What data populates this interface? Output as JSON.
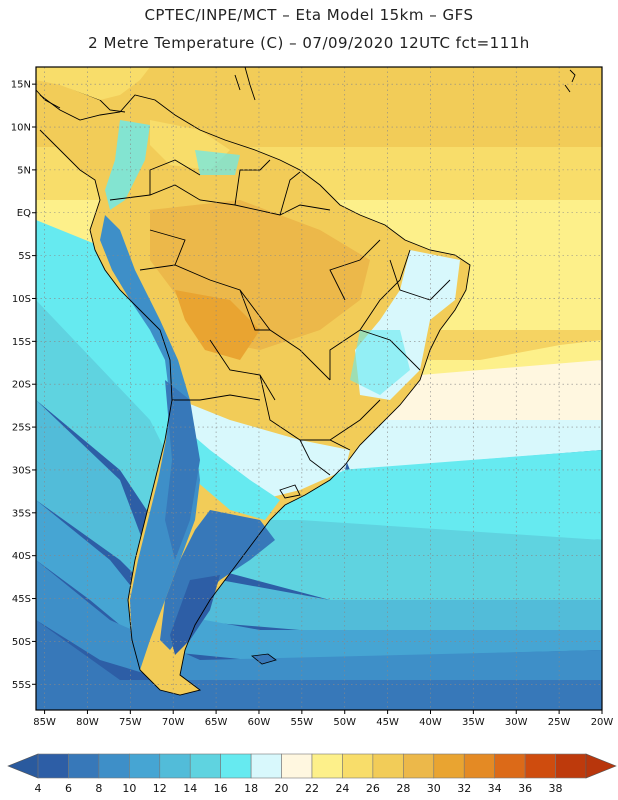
{
  "header": {
    "line1": "CPTEC/INPE/MCT –  Eta Model 15km – GFS",
    "line2": "2 Metre Temperature (C) – 07/09/2020 12UTC fct=111h"
  },
  "map": {
    "lat_labels": [
      "15N",
      "10N",
      "5N",
      "EQ",
      "5S",
      "10S",
      "15S",
      "20S",
      "25S",
      "30S",
      "35S",
      "40S",
      "45S",
      "50S",
      "55S"
    ],
    "lon_labels": [
      "85W",
      "80W",
      "75W",
      "70W",
      "65W",
      "60W",
      "55W",
      "50W",
      "45W",
      "40W",
      "35W",
      "30W",
      "25W",
      "20W"
    ],
    "lat_range": [
      17,
      -58
    ],
    "lon_range": [
      -86,
      -20
    ]
  },
  "colorbar": {
    "labels": [
      "4",
      "6",
      "8",
      "10",
      "12",
      "14",
      "16",
      "18",
      "20",
      "22",
      "24",
      "26",
      "28",
      "30",
      "32",
      "34",
      "36",
      "38"
    ],
    "colors": [
      "#2d5ea6",
      "#3778b9",
      "#3e8fc8",
      "#46a5d3",
      "#52bcd9",
      "#5fd3e0",
      "#66eaf0",
      "#d8f8fc",
      "#fff7e0",
      "#fdf08a",
      "#f8dd6a",
      "#f2cc58",
      "#ecb84a",
      "#e9a431",
      "#e48a24",
      "#dc6a18",
      "#cf4c0e",
      "#be3a0c"
    ],
    "low_color": "#2a5a9e",
    "high_color": "#b8360c"
  }
}
